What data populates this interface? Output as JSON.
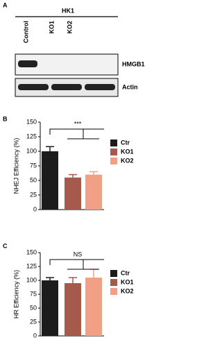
{
  "panel_a": {
    "label": "A",
    "group": "HK1",
    "lanes": [
      "Control",
      "KO1",
      "KO2"
    ],
    "rows": [
      "HMGB1",
      "Actin"
    ]
  },
  "chart_data": [
    {
      "type": "bar",
      "label": "B",
      "ylabel": "NHEJ Efficiency (%)",
      "categories": [
        "Ctr",
        "KO1",
        "KO2"
      ],
      "values": [
        100,
        55,
        60
      ],
      "errors": [
        8,
        5,
        5
      ],
      "colors": [
        "#1c1c1c",
        "#a65a4b",
        "#f2a085"
      ],
      "ylim": [
        0,
        150
      ],
      "yticks": [
        0,
        25,
        50,
        75,
        100,
        125,
        150
      ],
      "annotation": "***"
    },
    {
      "type": "bar",
      "label": "C",
      "ylabel": "HR Efficiency (%)",
      "categories": [
        "Ctr",
        "KO1",
        "KO2"
      ],
      "values": [
        100,
        95,
        105
      ],
      "errors": [
        5,
        10,
        15
      ],
      "colors": [
        "#1c1c1c",
        "#a65a4b",
        "#f2a085"
      ],
      "ylim": [
        0,
        150
      ],
      "yticks": [
        0,
        25,
        50,
        75,
        100,
        125,
        150
      ],
      "annotation": "NS"
    }
  ]
}
